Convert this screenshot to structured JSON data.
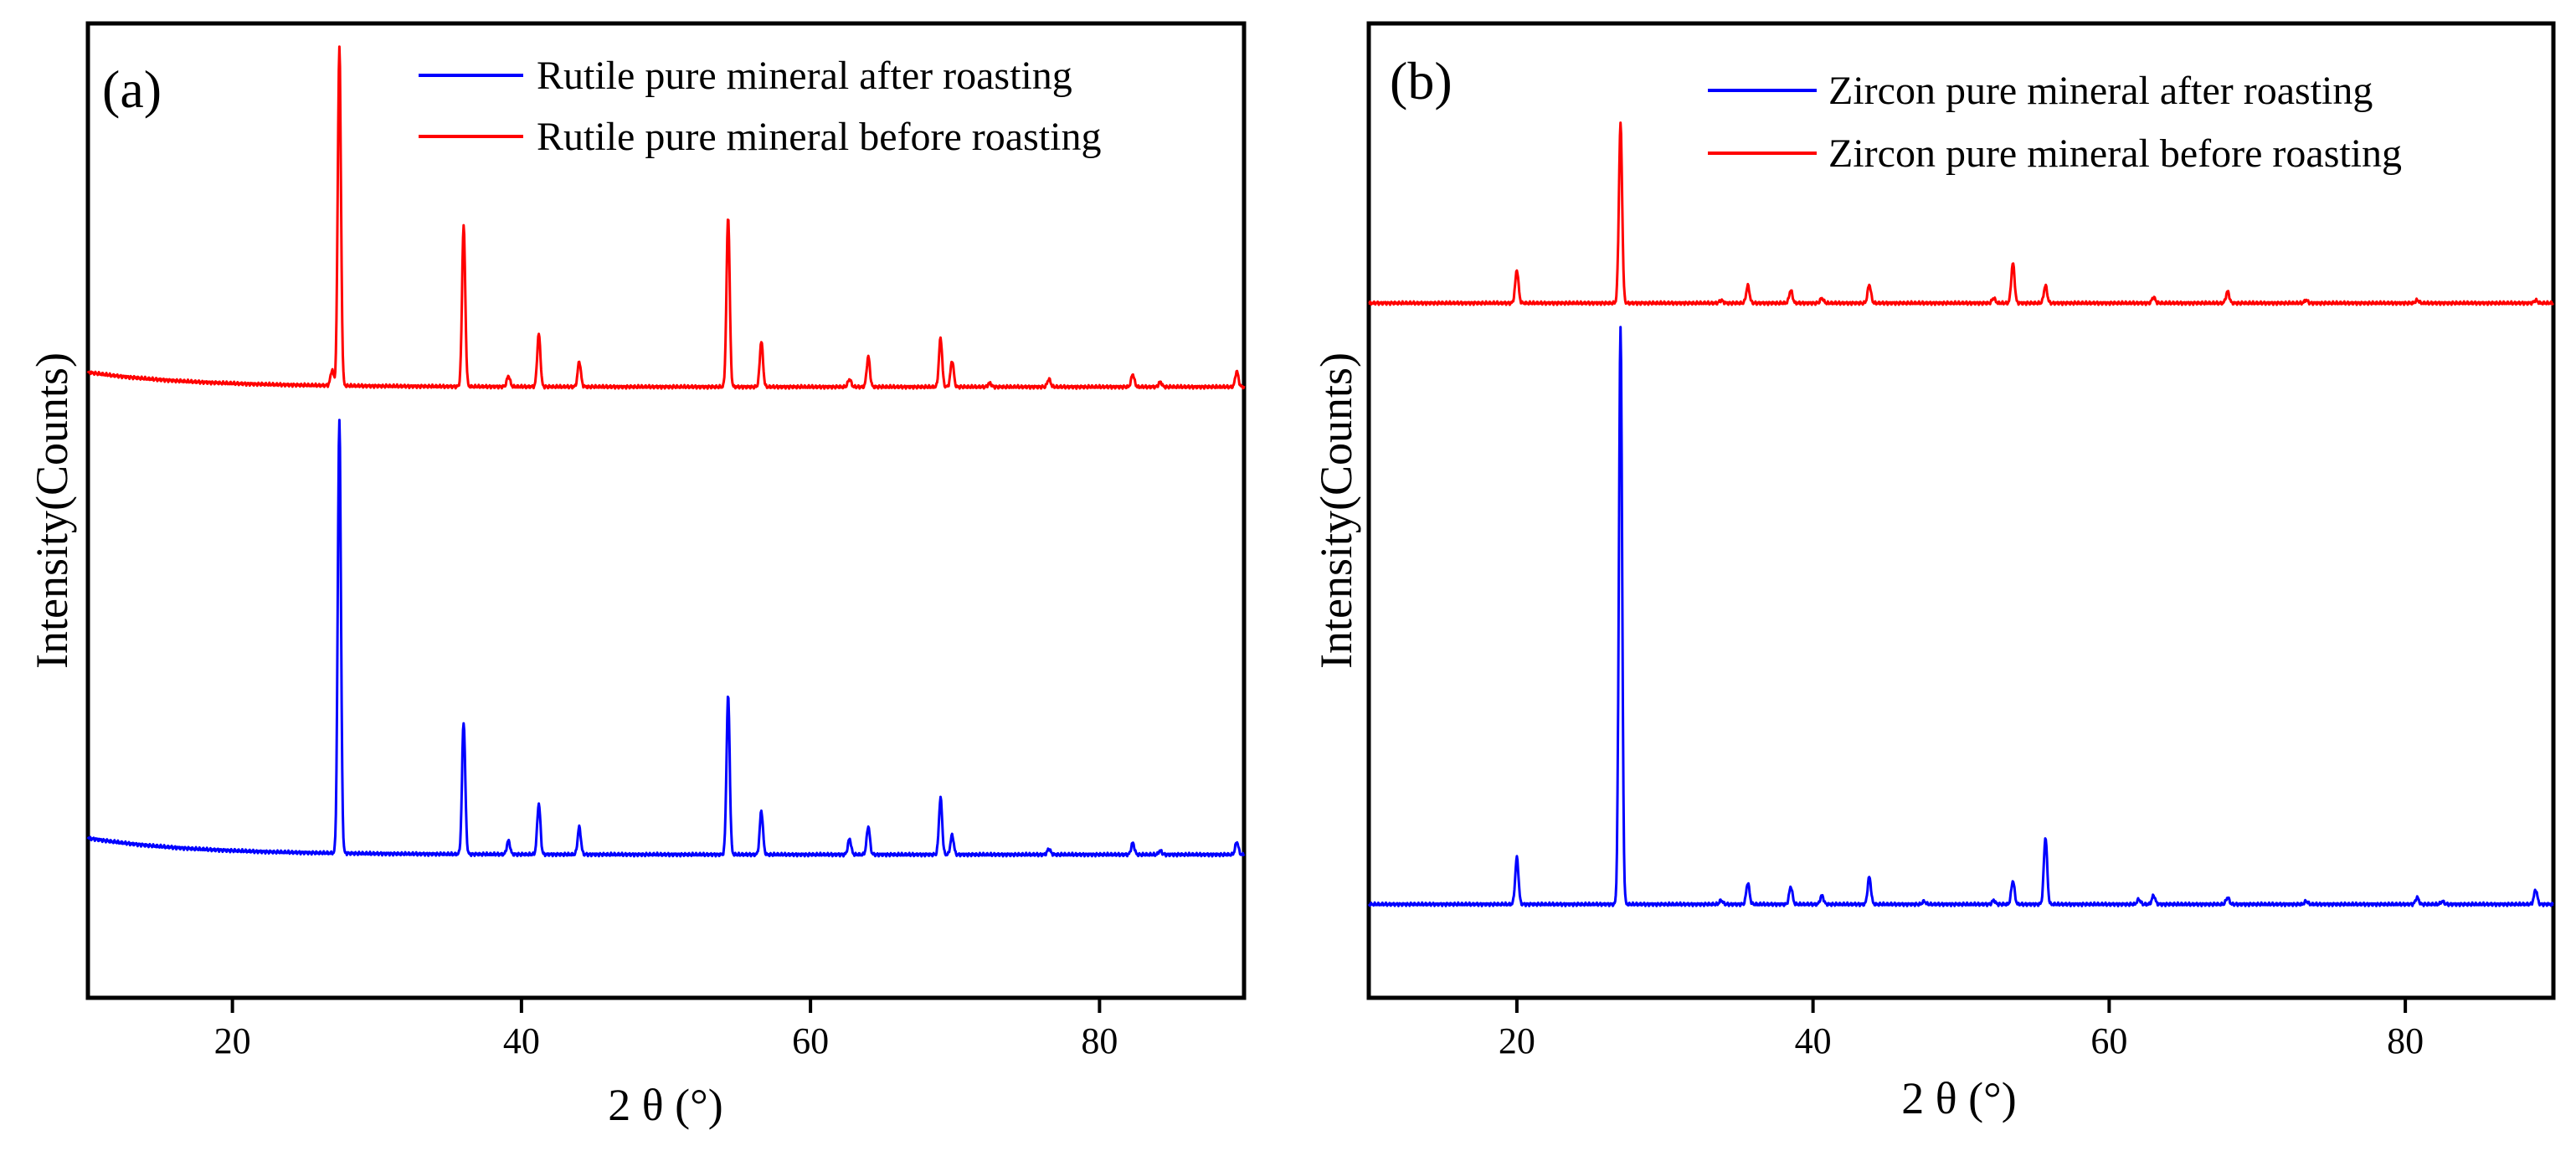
{
  "chart_data": [
    {
      "panel_label": "(a)",
      "type": "line",
      "xlabel": "2 θ (°)",
      "ylabel": "Intensity(Counts)",
      "xlim": [
        10,
        90
      ],
      "ylim": [
        0,
        100
      ],
      "x_ticks": [
        20,
        40,
        60,
        80
      ],
      "y_ticks_shown": false,
      "legend_position": "top-right",
      "series": [
        {
          "name": "Rutile pure mineral after roasting",
          "color": "#0000ff",
          "baseline": 14.7,
          "baseline_start_rise": 1.7,
          "peaks": [
            {
              "x": 27.4,
              "h": 44.6
            },
            {
              "x": 36.0,
              "h": 13.6
            },
            {
              "x": 39.1,
              "h": 1.4
            },
            {
              "x": 41.2,
              "h": 5.2
            },
            {
              "x": 44.0,
              "h": 2.8
            },
            {
              "x": 54.3,
              "h": 16.3
            },
            {
              "x": 56.6,
              "h": 4.5
            },
            {
              "x": 62.7,
              "h": 1.6
            },
            {
              "x": 64.0,
              "h": 2.9
            },
            {
              "x": 69.0,
              "h": 5.8
            },
            {
              "x": 69.8,
              "h": 2.0
            },
            {
              "x": 76.5,
              "h": 0.6
            },
            {
              "x": 82.3,
              "h": 1.2
            },
            {
              "x": 84.2,
              "h": 0.4
            },
            {
              "x": 89.5,
              "h": 1.3
            }
          ]
        },
        {
          "name": "Rutile pure mineral before roasting",
          "color": "#ff0000",
          "baseline": 62.7,
          "baseline_start_rise": 1.5,
          "peaks": [
            {
              "x": 26.9,
              "h": 1.6
            },
            {
              "x": 27.4,
              "h": 34.8
            },
            {
              "x": 36.0,
              "h": 16.5
            },
            {
              "x": 39.1,
              "h": 1.1
            },
            {
              "x": 41.2,
              "h": 5.4
            },
            {
              "x": 44.0,
              "h": 2.6
            },
            {
              "x": 54.3,
              "h": 17.5
            },
            {
              "x": 56.6,
              "h": 4.7
            },
            {
              "x": 62.7,
              "h": 0.8
            },
            {
              "x": 64.0,
              "h": 3.1
            },
            {
              "x": 69.0,
              "h": 5.0
            },
            {
              "x": 69.8,
              "h": 2.7
            },
            {
              "x": 72.4,
              "h": 0.4
            },
            {
              "x": 76.5,
              "h": 0.8
            },
            {
              "x": 82.3,
              "h": 1.3
            },
            {
              "x": 84.2,
              "h": 0.5
            },
            {
              "x": 89.5,
              "h": 1.6
            }
          ]
        }
      ]
    },
    {
      "panel_label": "(b)",
      "type": "line",
      "xlabel": "2 θ (°)",
      "ylabel": "Intensity(Counts)",
      "xlim": [
        10,
        90
      ],
      "ylim": [
        0,
        100
      ],
      "x_ticks": [
        20,
        40,
        60,
        80
      ],
      "y_ticks_shown": false,
      "legend_position": "top-right",
      "series": [
        {
          "name": "Zircon pure mineral after roasting",
          "color": "#0000ff",
          "baseline": 9.6,
          "baseline_start_rise": 0,
          "peaks": [
            {
              "x": 20.0,
              "h": 4.8
            },
            {
              "x": 27.0,
              "h": 59.4
            },
            {
              "x": 33.8,
              "h": 0.4
            },
            {
              "x": 35.6,
              "h": 2.2
            },
            {
              "x": 38.5,
              "h": 1.8
            },
            {
              "x": 40.6,
              "h": 0.9
            },
            {
              "x": 43.8,
              "h": 2.8
            },
            {
              "x": 47.5,
              "h": 0.3
            },
            {
              "x": 52.2,
              "h": 0.4
            },
            {
              "x": 53.5,
              "h": 2.4
            },
            {
              "x": 55.7,
              "h": 6.9
            },
            {
              "x": 62.0,
              "h": 0.5
            },
            {
              "x": 63.0,
              "h": 0.9
            },
            {
              "x": 68.0,
              "h": 0.7
            },
            {
              "x": 73.3,
              "h": 0.3
            },
            {
              "x": 80.8,
              "h": 0.7
            },
            {
              "x": 82.5,
              "h": 0.3
            },
            {
              "x": 88.8,
              "h": 1.5
            }
          ]
        },
        {
          "name": "Zircon pure mineral before roasting",
          "color": "#ff0000",
          "baseline": 71.3,
          "baseline_start_rise": 0,
          "peaks": [
            {
              "x": 20.0,
              "h": 3.4
            },
            {
              "x": 27.0,
              "h": 18.4
            },
            {
              "x": 33.8,
              "h": 0.3
            },
            {
              "x": 35.6,
              "h": 1.8
            },
            {
              "x": 38.5,
              "h": 1.3
            },
            {
              "x": 40.6,
              "h": 0.5
            },
            {
              "x": 43.8,
              "h": 1.9
            },
            {
              "x": 52.2,
              "h": 0.5
            },
            {
              "x": 53.5,
              "h": 4.1
            },
            {
              "x": 55.7,
              "h": 1.8
            },
            {
              "x": 63.0,
              "h": 0.6
            },
            {
              "x": 68.0,
              "h": 1.2
            },
            {
              "x": 73.3,
              "h": 0.3
            },
            {
              "x": 80.8,
              "h": 0.3
            },
            {
              "x": 88.8,
              "h": 0.3
            }
          ]
        }
      ]
    }
  ]
}
